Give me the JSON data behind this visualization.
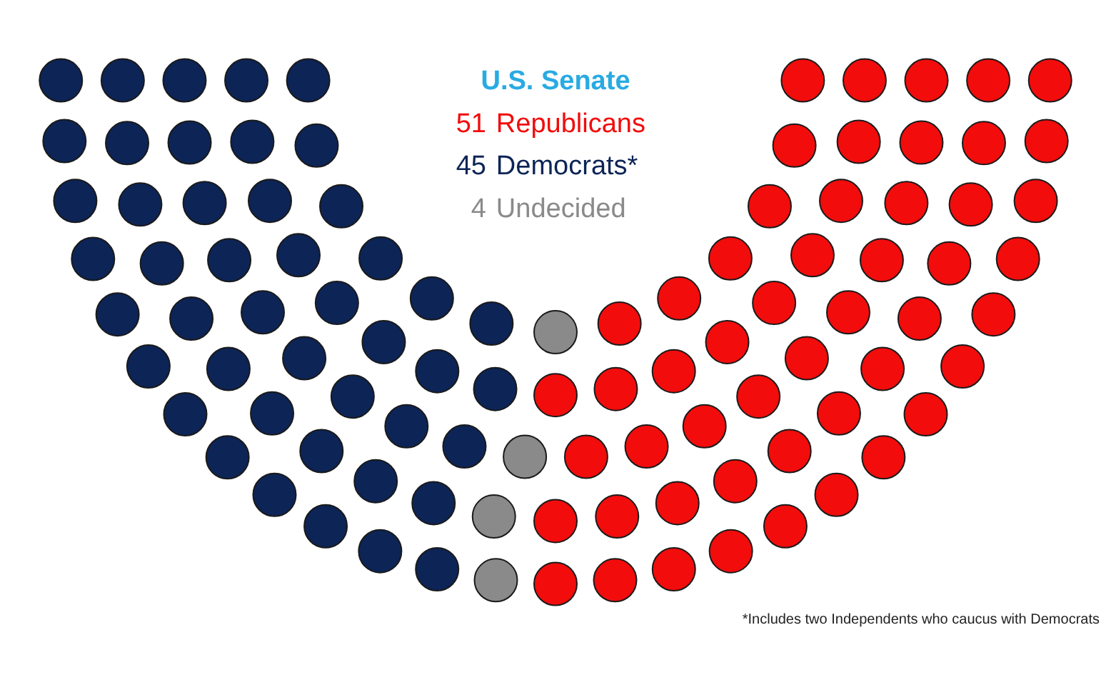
{
  "chart_data": {
    "type": "other",
    "title": "U.S. Senate",
    "categories": [
      "Republicans",
      "Democrats*",
      "Undecided"
    ],
    "values": [
      51,
      45,
      4
    ],
    "colors": [
      "#f20c0c",
      "#0c2456",
      "#8a8a8a"
    ],
    "data_labels": true,
    "annotations": [
      "*Includes two Independents who caucus with Democrats"
    ]
  }
}
